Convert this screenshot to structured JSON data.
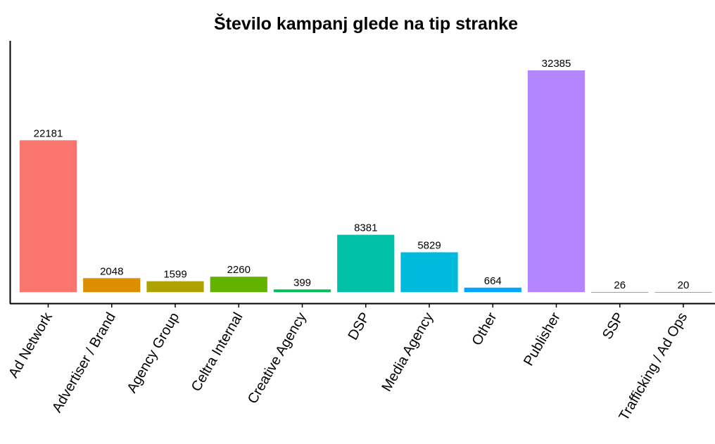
{
  "chart_data": {
    "type": "bar",
    "title": "Število kampanj glede na tip stranke",
    "categories": [
      "Ad Network",
      "Advertiser / Brand",
      "Agency Group",
      "Celtra Internal",
      "Creative Agency",
      "DSP",
      "Media Agency",
      "Other",
      "Publisher",
      "SSP",
      "Trafficking / Ad Ops"
    ],
    "values": [
      22181,
      2048,
      1599,
      2260,
      399,
      8381,
      5829,
      664,
      32385,
      26,
      20
    ],
    "colors": [
      "#f8766d",
      "#db8e00",
      "#aea200",
      "#64b200",
      "#00bd5c",
      "#00c1a7",
      "#00bade",
      "#00a6ff",
      "#b385ff",
      "#ef67eb",
      "#ff63b6"
    ],
    "ylim": [
      -1619,
      36700
    ]
  }
}
